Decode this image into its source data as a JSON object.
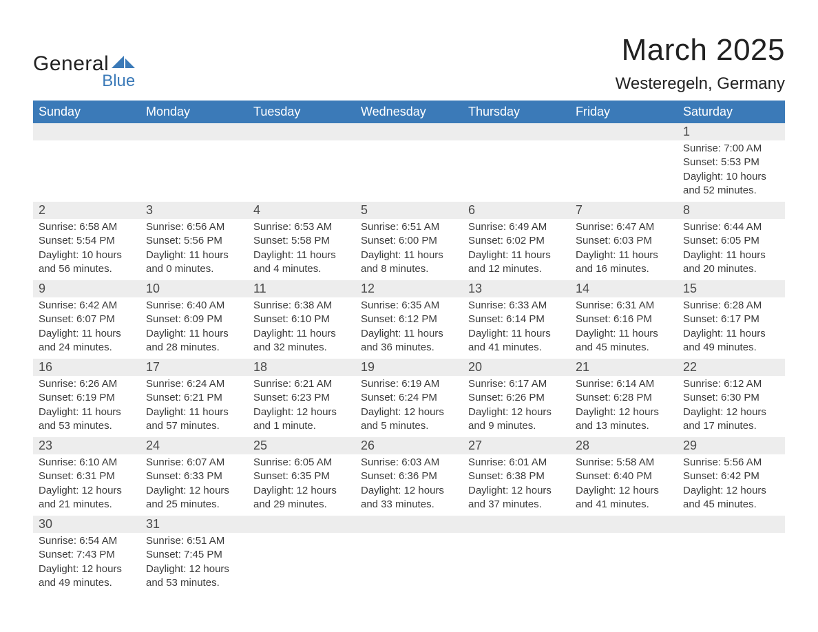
{
  "brand": {
    "line1": "General",
    "line2": "Blue",
    "tri_color": "#3b7ab8"
  },
  "header": {
    "month_title": "March 2025",
    "location": "Westeregeln, Germany"
  },
  "colors": {
    "header_bg": "#3b7ab8",
    "header_text": "#ffffff",
    "daynum_bg": "#ededed",
    "row_divider": "#3b7ab8",
    "body_text": "#3b3b3b",
    "page_bg": "#ffffff"
  },
  "typography": {
    "month_title_pt": 44,
    "location_pt": 24,
    "weekday_pt": 18,
    "daynum_pt": 18,
    "detail_pt": 15
  },
  "calendar": {
    "type": "table",
    "weekdays": [
      "Sunday",
      "Monday",
      "Tuesday",
      "Wednesday",
      "Thursday",
      "Friday",
      "Saturday"
    ],
    "weeks": [
      [
        null,
        null,
        null,
        null,
        null,
        null,
        {
          "n": "1",
          "sunrise": "7:00 AM",
          "sunset": "5:53 PM",
          "daylight": "10 hours and 52 minutes."
        }
      ],
      [
        {
          "n": "2",
          "sunrise": "6:58 AM",
          "sunset": "5:54 PM",
          "daylight": "10 hours and 56 minutes."
        },
        {
          "n": "3",
          "sunrise": "6:56 AM",
          "sunset": "5:56 PM",
          "daylight": "11 hours and 0 minutes."
        },
        {
          "n": "4",
          "sunrise": "6:53 AM",
          "sunset": "5:58 PM",
          "daylight": "11 hours and 4 minutes."
        },
        {
          "n": "5",
          "sunrise": "6:51 AM",
          "sunset": "6:00 PM",
          "daylight": "11 hours and 8 minutes."
        },
        {
          "n": "6",
          "sunrise": "6:49 AM",
          "sunset": "6:02 PM",
          "daylight": "11 hours and 12 minutes."
        },
        {
          "n": "7",
          "sunrise": "6:47 AM",
          "sunset": "6:03 PM",
          "daylight": "11 hours and 16 minutes."
        },
        {
          "n": "8",
          "sunrise": "6:44 AM",
          "sunset": "6:05 PM",
          "daylight": "11 hours and 20 minutes."
        }
      ],
      [
        {
          "n": "9",
          "sunrise": "6:42 AM",
          "sunset": "6:07 PM",
          "daylight": "11 hours and 24 minutes."
        },
        {
          "n": "10",
          "sunrise": "6:40 AM",
          "sunset": "6:09 PM",
          "daylight": "11 hours and 28 minutes."
        },
        {
          "n": "11",
          "sunrise": "6:38 AM",
          "sunset": "6:10 PM",
          "daylight": "11 hours and 32 minutes."
        },
        {
          "n": "12",
          "sunrise": "6:35 AM",
          "sunset": "6:12 PM",
          "daylight": "11 hours and 36 minutes."
        },
        {
          "n": "13",
          "sunrise": "6:33 AM",
          "sunset": "6:14 PM",
          "daylight": "11 hours and 41 minutes."
        },
        {
          "n": "14",
          "sunrise": "6:31 AM",
          "sunset": "6:16 PM",
          "daylight": "11 hours and 45 minutes."
        },
        {
          "n": "15",
          "sunrise": "6:28 AM",
          "sunset": "6:17 PM",
          "daylight": "11 hours and 49 minutes."
        }
      ],
      [
        {
          "n": "16",
          "sunrise": "6:26 AM",
          "sunset": "6:19 PM",
          "daylight": "11 hours and 53 minutes."
        },
        {
          "n": "17",
          "sunrise": "6:24 AM",
          "sunset": "6:21 PM",
          "daylight": "11 hours and 57 minutes."
        },
        {
          "n": "18",
          "sunrise": "6:21 AM",
          "sunset": "6:23 PM",
          "daylight": "12 hours and 1 minute."
        },
        {
          "n": "19",
          "sunrise": "6:19 AM",
          "sunset": "6:24 PM",
          "daylight": "12 hours and 5 minutes."
        },
        {
          "n": "20",
          "sunrise": "6:17 AM",
          "sunset": "6:26 PM",
          "daylight": "12 hours and 9 minutes."
        },
        {
          "n": "21",
          "sunrise": "6:14 AM",
          "sunset": "6:28 PM",
          "daylight": "12 hours and 13 minutes."
        },
        {
          "n": "22",
          "sunrise": "6:12 AM",
          "sunset": "6:30 PM",
          "daylight": "12 hours and 17 minutes."
        }
      ],
      [
        {
          "n": "23",
          "sunrise": "6:10 AM",
          "sunset": "6:31 PM",
          "daylight": "12 hours and 21 minutes."
        },
        {
          "n": "24",
          "sunrise": "6:07 AM",
          "sunset": "6:33 PM",
          "daylight": "12 hours and 25 minutes."
        },
        {
          "n": "25",
          "sunrise": "6:05 AM",
          "sunset": "6:35 PM",
          "daylight": "12 hours and 29 minutes."
        },
        {
          "n": "26",
          "sunrise": "6:03 AM",
          "sunset": "6:36 PM",
          "daylight": "12 hours and 33 minutes."
        },
        {
          "n": "27",
          "sunrise": "6:01 AM",
          "sunset": "6:38 PM",
          "daylight": "12 hours and 37 minutes."
        },
        {
          "n": "28",
          "sunrise": "5:58 AM",
          "sunset": "6:40 PM",
          "daylight": "12 hours and 41 minutes."
        },
        {
          "n": "29",
          "sunrise": "5:56 AM",
          "sunset": "6:42 PM",
          "daylight": "12 hours and 45 minutes."
        }
      ],
      [
        {
          "n": "30",
          "sunrise": "6:54 AM",
          "sunset": "7:43 PM",
          "daylight": "12 hours and 49 minutes."
        },
        {
          "n": "31",
          "sunrise": "6:51 AM",
          "sunset": "7:45 PM",
          "daylight": "12 hours and 53 minutes."
        },
        null,
        null,
        null,
        null,
        null
      ]
    ]
  },
  "labels": {
    "sunrise": "Sunrise:",
    "sunset": "Sunset:",
    "daylight": "Daylight:"
  }
}
